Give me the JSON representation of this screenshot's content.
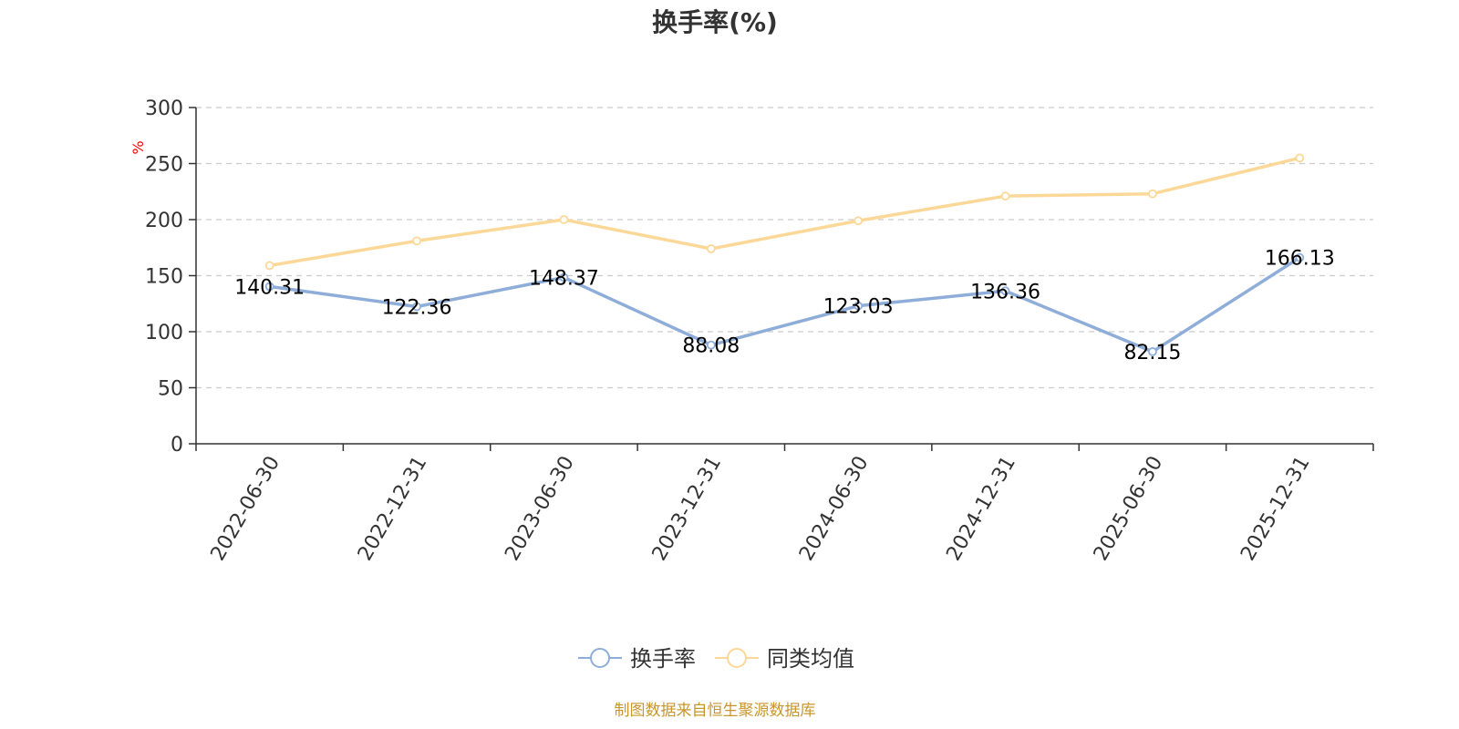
{
  "chart_data": {
    "type": "line",
    "title": "换手率(%)",
    "ylabel": "%",
    "ylim": [
      0,
      300
    ],
    "yticks": [
      0,
      50,
      100,
      150,
      200,
      250,
      300
    ],
    "grid": true,
    "legend_position": "bottom",
    "categories": [
      "2022-06-30",
      "2022-12-31",
      "2023-06-30",
      "2023-12-31",
      "2024-06-30",
      "2024-12-31",
      "2025-06-30",
      "2025-12-31"
    ],
    "series": [
      {
        "name": "换手率",
        "color": "#8eadd9",
        "values": [
          140.31,
          122.36,
          148.37,
          88.08,
          123.03,
          136.36,
          82.15,
          166.13
        ],
        "data_labels": [
          "140.31",
          "122.36",
          "148.37",
          "88.08",
          "123.03",
          "136.36",
          "82.15",
          "166.13"
        ]
      },
      {
        "name": "同类均值",
        "color": "#fcd898",
        "values": [
          159,
          181,
          200,
          174,
          199,
          221,
          223,
          255
        ]
      }
    ]
  },
  "ylabel_color": "#ff0000",
  "source": {
    "text": "制图数据来自恒生聚源数据库",
    "color": "#c8962c"
  }
}
